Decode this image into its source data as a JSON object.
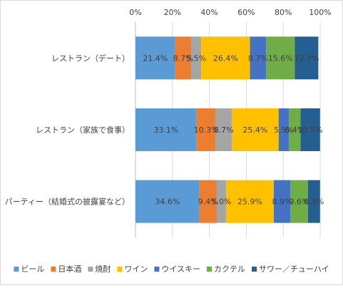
{
  "chart_data": {
    "type": "bar",
    "orientation": "horizontal",
    "stacked": "percent",
    "title": "",
    "xlabel": "",
    "ylabel": "",
    "xlim": [
      0,
      100
    ],
    "x_ticks": [
      "0%",
      "20%",
      "40%",
      "60%",
      "80%",
      "100%"
    ],
    "x_axis_position": "top",
    "grid": true,
    "legend_position": "bottom",
    "categories": [
      "レストラン（デート）",
      "レストラン（家族で食事）",
      "パーティー（結婚式の披露宴など）"
    ],
    "series": [
      {
        "name": "ビール",
        "color": "#5b9bd5",
        "values": [
          21.4,
          33.1,
          34.6
        ],
        "labels": [
          "21.4%",
          "33.1%",
          "34.6%"
        ]
      },
      {
        "name": "日本酒",
        "color": "#ed7d31",
        "values": [
          8.7,
          10.3,
          9.4
        ],
        "labels": [
          "8.7%",
          "10.3%",
          "9.4%"
        ]
      },
      {
        "name": "焼酎",
        "color": "#a5a5a5",
        "values": [
          5.5,
          8.7,
          5.0
        ],
        "labels": [
          "5.5%",
          "8.7%",
          "5.0%"
        ]
      },
      {
        "name": "ワイン",
        "color": "#ffc000",
        "values": [
          26.4,
          25.4,
          25.9
        ],
        "labels": [
          "26.4%",
          "25.4%",
          "25.9%"
        ]
      },
      {
        "name": "ウイスキー",
        "color": "#4472c4",
        "values": [
          8.7,
          5.5,
          8.9
        ],
        "labels": [
          "8.7%",
          "5.5%",
          "8.9%"
        ]
      },
      {
        "name": "カクテル",
        "color": "#70ad47",
        "values": [
          15.6,
          6.4,
          9.6
        ],
        "labels": [
          "15.6%",
          "6.4%",
          "9.6%"
        ]
      },
      {
        "name": "サワー／チューハイ",
        "color": "#255e91",
        "values": [
          12.7,
          10.5,
          6.5
        ],
        "labels": [
          "12.7%",
          "10.5%",
          "6.5%"
        ]
      }
    ]
  }
}
